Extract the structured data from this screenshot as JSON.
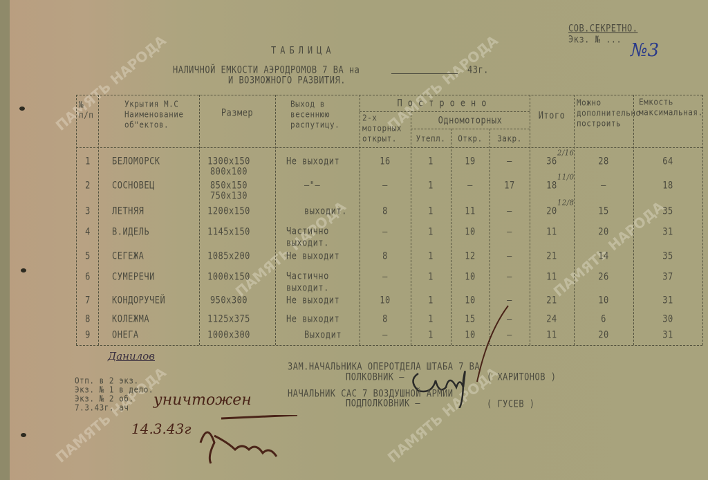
{
  "header": {
    "org": "СОВ.СЕКРЕТНО.",
    "copy": "Экз. № ...",
    "handwritten_number": "№3",
    "title": "ТАБЛИЦА",
    "subtitle_1": "НАЛИЧНОЙ ЕМКОСТИ АЭРОДРОМОВ 7 ВА на",
    "subtitle_year": "43г.",
    "subtitle_2": "И ВОЗМОЖНОГО РАЗВИТИЯ."
  },
  "columns": {
    "num": "№ п/п",
    "name": "Укрытия М.С Наименование об\"ектов.",
    "size": "Размер",
    "exit": "Выход в весеннюю распутицу.",
    "built": "Построено",
    "two_engine": "2-х моторных открыт.",
    "single_engine": "Одномоторных",
    "warm": "Утепл.",
    "open": "Откр.",
    "closed": "Закр.",
    "total": "Итого",
    "can_build": "Можно дополнительно построить",
    "capacity": "Емкость максимальная."
  },
  "rows": [
    {
      "num": "1",
      "name": "БЕЛОМОРСК",
      "size": [
        "1300х150",
        "800х100"
      ],
      "exit": "Не выходит",
      "two": "16",
      "warm": "1",
      "open": "19",
      "closed": "–",
      "total": "36",
      "total_note": "2/16",
      "can": "28",
      "cap": "64"
    },
    {
      "num": "2",
      "name": "СОСНОВЕЦ",
      "size": [
        "850х150",
        "750х130"
      ],
      "exit": "–\"–",
      "two": "–",
      "warm": "1",
      "open": "–",
      "closed": "17",
      "total": "18",
      "total_note": "11/0",
      "can": "–",
      "cap": "18"
    },
    {
      "num": "3",
      "name": "ЛЕТНЯЯ",
      "size": [
        "1200х150"
      ],
      "exit": "выходит.",
      "two": "8",
      "warm": "1",
      "open": "11",
      "closed": "–",
      "total": "20",
      "total_note": "12/8",
      "can": "15",
      "cap": "35"
    },
    {
      "num": "4",
      "name": "В.ИДЕЛЬ",
      "size": [
        "1145х150"
      ],
      "exit": "Частично выходит.",
      "two": "–",
      "warm": "1",
      "open": "10",
      "closed": "–",
      "total": "11",
      "total_note": "",
      "can": "20",
      "cap": "31"
    },
    {
      "num": "5",
      "name": "СЕГЕЖА",
      "size": [
        "1085х200"
      ],
      "exit": "Не выходит",
      "two": "8",
      "warm": "1",
      "open": "12",
      "closed": "–",
      "total": "21",
      "total_note": "",
      "can": "14",
      "cap": "35"
    },
    {
      "num": "6",
      "name": "СУМЕРЕЧИ",
      "size": [
        "1000х150"
      ],
      "exit": "Частично выходит.",
      "two": "–",
      "warm": "1",
      "open": "10",
      "closed": "–",
      "total": "11",
      "total_note": "",
      "can": "26",
      "cap": "37"
    },
    {
      "num": "7",
      "name": "КОНДОРУЧЕЙ",
      "size": [
        "950х300"
      ],
      "exit": "Не выходит",
      "two": "10",
      "warm": "1",
      "open": "10",
      "closed": "–",
      "total": "21",
      "total_note": "",
      "can": "10",
      "cap": "31"
    },
    {
      "num": "8",
      "name": "КОЛЕЖМА",
      "size": [
        "1125х375"
      ],
      "exit": "Не выходит",
      "two": "8",
      "warm": "1",
      "open": "15",
      "closed": "–",
      "total": "24",
      "total_note": "",
      "can": "6",
      "cap": "30"
    },
    {
      "num": "9",
      "name": "ОНЕГА",
      "size": [
        "1000х300"
      ],
      "exit": "Выходит",
      "two": "–",
      "warm": "1",
      "open": "10",
      "closed": "–",
      "total": "11",
      "total_note": "",
      "can": "20",
      "cap": "31"
    }
  ],
  "footer": {
    "handwritten_name": "Данилов",
    "notes": [
      "Отп. в 2 экз.",
      "Экз. № 1 в дело.",
      "Экз. № 2 об.",
      "7.3.43г. ач"
    ],
    "handwritten_destroyed": "уничтожен",
    "handwritten_date": "14.3.43г",
    "sig1_title": "ЗАМ.НАЧАЛЬНИКА ОПЕРОТДЕЛА ШТАБА 7 ВА",
    "sig1_rank": "ПОЛКОВНИК –",
    "sig1_name": "( ХАРИТОНОВ )",
    "sig2_title": "НАЧАЛЬНИК САС 7 ВОЗДУШНОЙ АРМИИ",
    "sig2_rank": "ПОДПОЛКОВНИК –",
    "sig2_name": "( ГУСЕВ )"
  },
  "watermark": "ПАМЯТЬ НАРОДА",
  "colors": {
    "paper": "#a8a37d",
    "ink": "#4c4b3f",
    "blue_ink": "#2a3a8a",
    "brown_ink": "#4a2418"
  }
}
